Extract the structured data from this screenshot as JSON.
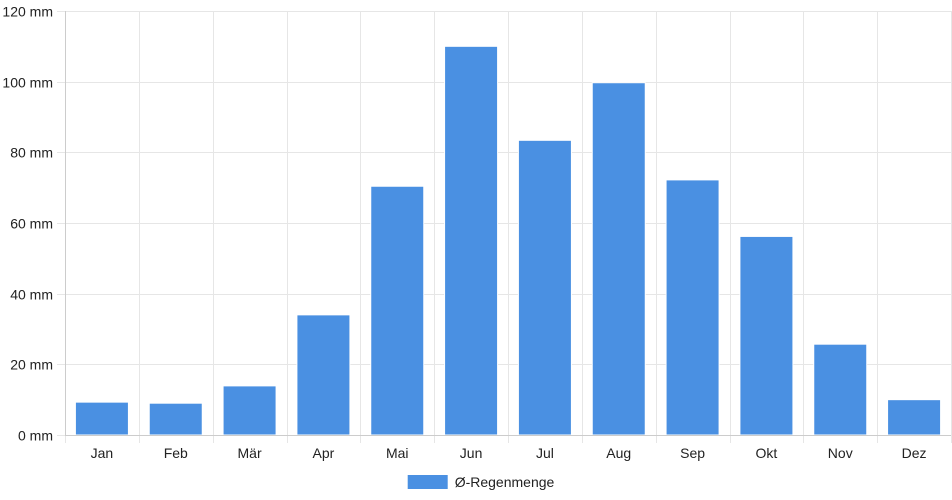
{
  "chart_data": {
    "type": "bar",
    "categories": [
      "Jan",
      "Feb",
      "Mär",
      "Apr",
      "Mai",
      "Jun",
      "Jul",
      "Aug",
      "Sep",
      "Okt",
      "Nov",
      "Dez"
    ],
    "series": [
      {
        "name": "Ø-Regenmenge",
        "values": [
          9.3,
          9.0,
          13.9,
          34.0,
          70.4,
          110.0,
          83.4,
          99.7,
          72.2,
          56.2,
          25.7,
          10.0
        ],
        "color": "#4a90e2"
      }
    ],
    "y_unit": "mm",
    "ylim": [
      0,
      120
    ],
    "y_ticks": [
      0,
      20,
      40,
      60,
      80,
      100,
      120
    ],
    "y_tick_labels": [
      "0 mm",
      "20 mm",
      "40 mm",
      "60 mm",
      "80 mm",
      "100 mm",
      "120 mm"
    ],
    "grid": true,
    "legend_position": "bottom-center",
    "colors": {
      "bar": "#4a90e2",
      "grid": "#e6e6e6",
      "axis": "#cccccc",
      "text": "#222222"
    }
  }
}
